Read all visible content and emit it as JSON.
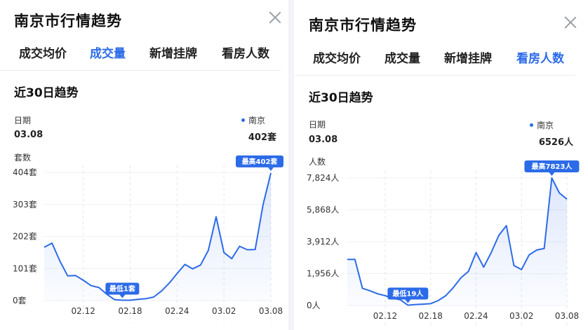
{
  "left": {
    "title": "南京市行情趋势",
    "tabs": [
      "成交均价",
      "成交量",
      "新增挂牌",
      "看房人数"
    ],
    "active_tab": 1,
    "section_title": "近30日趋势",
    "date_label": "日期",
    "date_value": "03.08",
    "legend_name": "南京",
    "legend_value": "402套",
    "unit_label": "套数",
    "accent": "#2c6be8",
    "chart_data": {
      "type": "area",
      "x": [
        "02.07",
        "02.08",
        "02.09",
        "02.10",
        "02.11",
        "02.12",
        "02.13",
        "02.14",
        "02.15",
        "02.16",
        "02.17",
        "02.18",
        "02.19",
        "02.20",
        "02.21",
        "02.22",
        "02.23",
        "02.24",
        "02.25",
        "02.26",
        "02.27",
        "02.28",
        "03.01",
        "03.02",
        "03.03",
        "03.04",
        "03.05",
        "03.06",
        "03.07",
        "03.08"
      ],
      "series": [
        {
          "name": "南京",
          "values": [
            168,
            181,
            125,
            78,
            79,
            64,
            47,
            41,
            20,
            3,
            1,
            1,
            4,
            6,
            11,
            30,
            55,
            85,
            114,
            100,
            112,
            158,
            264,
            151,
            132,
            171,
            160,
            161,
            302,
            402
          ]
        }
      ],
      "ylim": [
        0,
        404
      ],
      "yticks": [
        "0套",
        "101套",
        "202套",
        "303套",
        "404套"
      ],
      "ytick_values": [
        0,
        101,
        202,
        303,
        404
      ],
      "xticks": [
        "02.12",
        "02.18",
        "02.24",
        "03.02",
        "03.08"
      ],
      "max_label": "最高402套",
      "min_label": "最低1套",
      "max_index": 29,
      "min_index": 10
    }
  },
  "right": {
    "title": "南京市行情趋势",
    "tabs": [
      "成交均价",
      "成交量",
      "新增挂牌",
      "看房人数"
    ],
    "active_tab": 3,
    "section_title": "近30日趋势",
    "date_label": "日期",
    "date_value": "03.08",
    "legend_name": "南京",
    "legend_value": "6526人",
    "unit_label": "人数",
    "accent": "#2c6be8",
    "chart_data": {
      "type": "area",
      "x": [
        "02.07",
        "02.08",
        "02.09",
        "02.10",
        "02.11",
        "02.12",
        "02.13",
        "02.14",
        "02.15",
        "02.16",
        "02.17",
        "02.18",
        "02.19",
        "02.20",
        "02.21",
        "02.22",
        "02.23",
        "02.24",
        "02.25",
        "02.26",
        "02.27",
        "02.28",
        "03.01",
        "03.02",
        "03.03",
        "03.04",
        "03.05",
        "03.06",
        "03.07",
        "03.08"
      ],
      "series": [
        {
          "name": "南京",
          "values": [
            2830,
            2830,
            1050,
            900,
            720,
            600,
            440,
            350,
            19,
            60,
            80,
            110,
            300,
            600,
            1100,
            1700,
            2100,
            3250,
            2350,
            3250,
            4300,
            4900,
            2450,
            2200,
            3100,
            3400,
            3500,
            7823,
            6900,
            6526
          ]
        }
      ],
      "ylim": [
        0,
        7824
      ],
      "yticks": [
        "0人",
        "1,956人",
        "3,912人",
        "5,868人",
        "7,824人"
      ],
      "ytick_values": [
        0,
        1956,
        3912,
        5868,
        7824
      ],
      "xticks": [
        "02.12",
        "02.18",
        "02.24",
        "03.02",
        "03.08"
      ],
      "max_label": "最高7823人",
      "min_label": "最低19人",
      "max_index": 27,
      "min_index": 8
    }
  }
}
